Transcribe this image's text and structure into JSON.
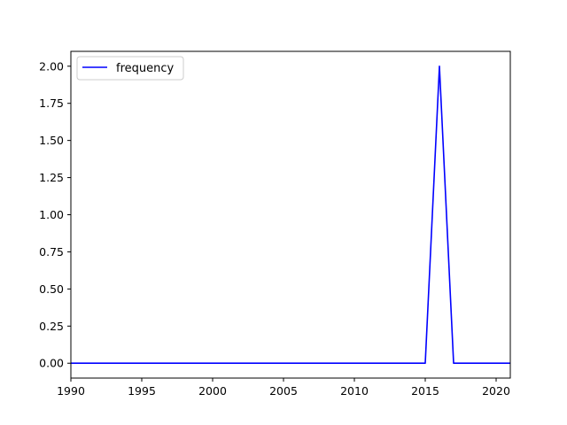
{
  "chart_data": {
    "type": "line",
    "title": "",
    "xlabel": "",
    "ylabel": "",
    "xlim": [
      1990,
      2021
    ],
    "ylim": [
      -0.1,
      2.1
    ],
    "grid": false,
    "legend_position": "top-left",
    "x_ticks": [
      1990,
      1995,
      2000,
      2005,
      2010,
      2015,
      2020
    ],
    "x_tick_labels": [
      "1990",
      "1995",
      "2000",
      "2005",
      "2010",
      "2015",
      "2020"
    ],
    "y_ticks": [
      0.0,
      0.25,
      0.5,
      0.75,
      1.0,
      1.25,
      1.5,
      1.75,
      2.0
    ],
    "y_tick_labels": [
      "0.00",
      "0.25",
      "0.50",
      "0.75",
      "1.00",
      "1.25",
      "1.50",
      "1.75",
      "2.00"
    ],
    "series": [
      {
        "name": "frequency",
        "color": "#0000ff",
        "x": [
          1990,
          1991,
          1992,
          1993,
          1994,
          1995,
          1996,
          1997,
          1998,
          1999,
          2000,
          2001,
          2002,
          2003,
          2004,
          2005,
          2006,
          2007,
          2008,
          2009,
          2010,
          2011,
          2012,
          2013,
          2014,
          2015,
          2016,
          2017,
          2018,
          2019,
          2020,
          2021
        ],
        "y": [
          0,
          0,
          0,
          0,
          0,
          0,
          0,
          0,
          0,
          0,
          0,
          0,
          0,
          0,
          0,
          0,
          0,
          0,
          0,
          0,
          0,
          0,
          0,
          0,
          0,
          0,
          2,
          0,
          0,
          0,
          0,
          0
        ]
      }
    ]
  }
}
